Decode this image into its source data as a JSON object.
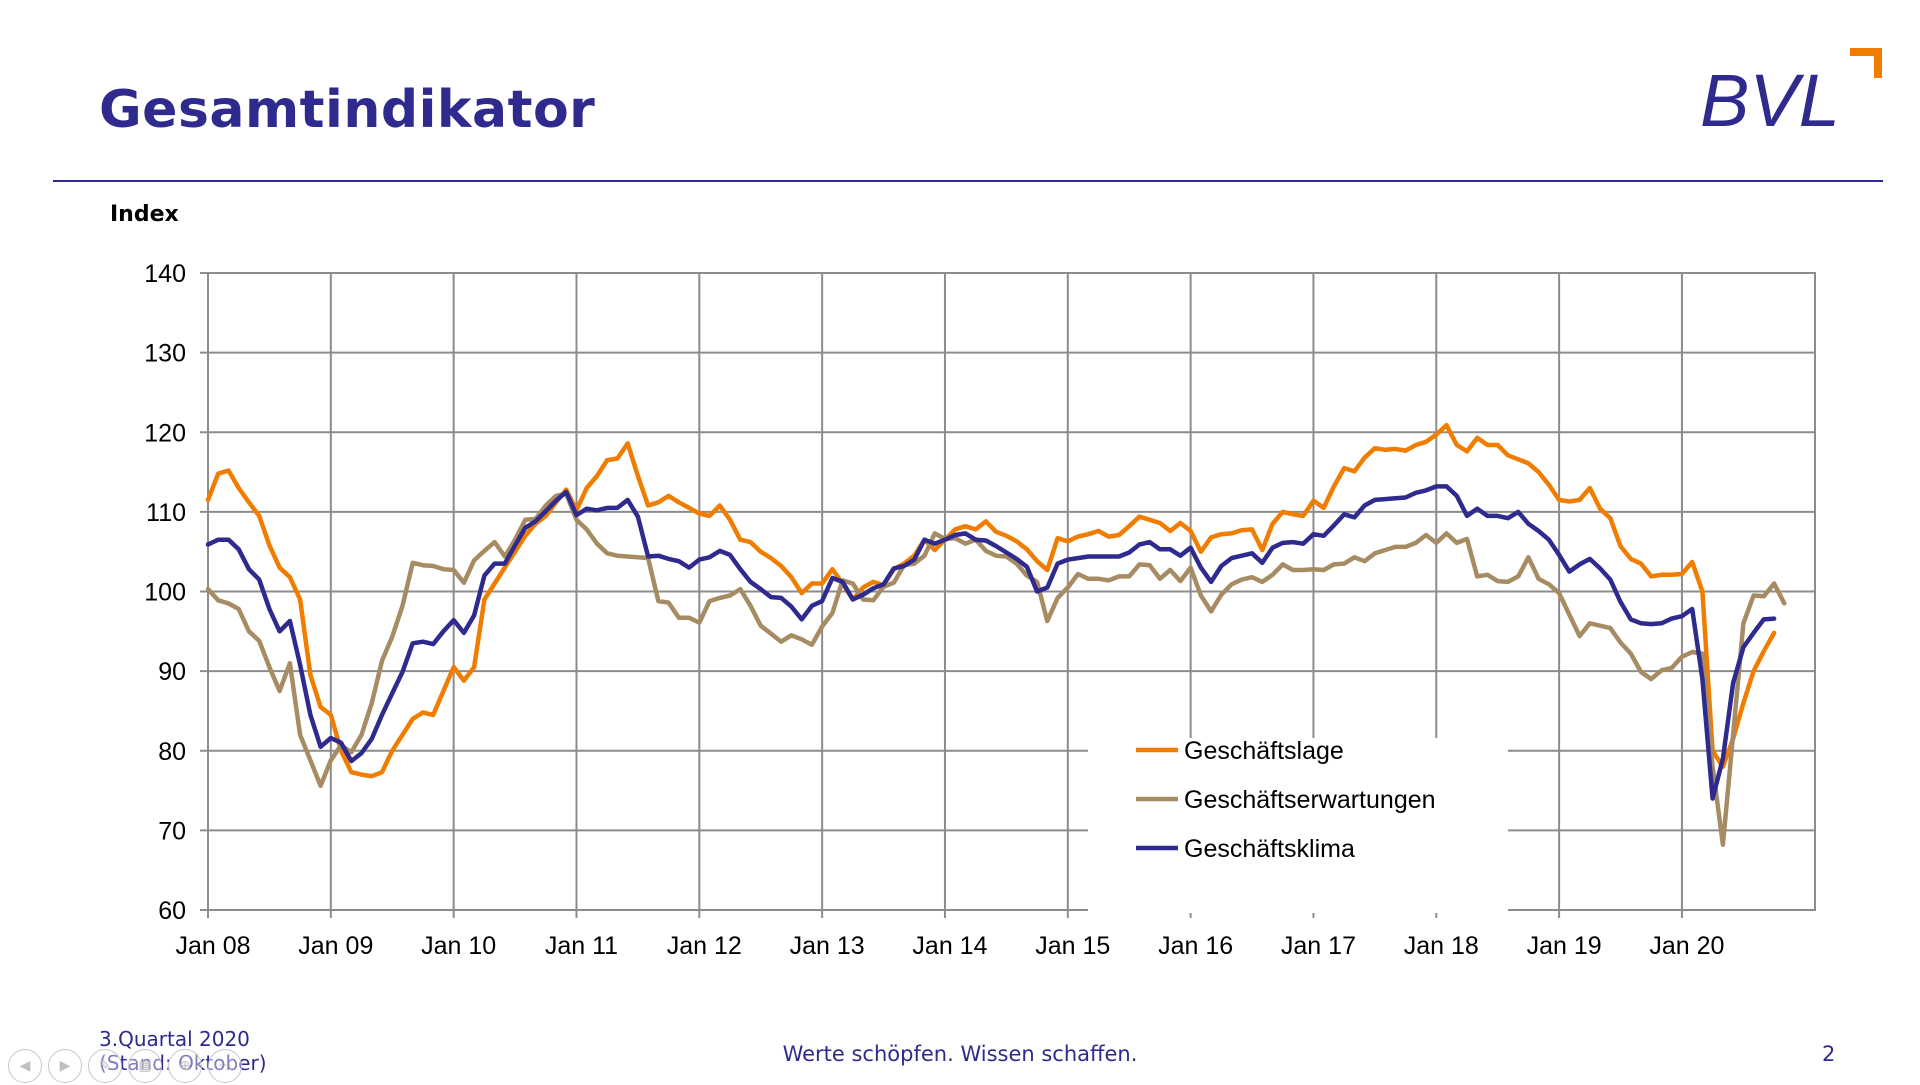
{
  "page": {
    "title": "Gesamtindikator",
    "footer_period": "3.Quartal 2020",
    "footer_status": "(Stand: Oktober)",
    "slogan": "Werte schöpfen. Wissen schaffen.",
    "page_number": "2"
  },
  "logo": {
    "text": "BVL",
    "text_color": "#2e2a8e",
    "accent_color": "#f07d00"
  },
  "nav_controls": {
    "icons": [
      "prev-icon",
      "next-icon",
      "pen-icon",
      "gallery-icon",
      "zoom-icon",
      "more-icon"
    ]
  },
  "chart_data": {
    "type": "line",
    "ylabel": "Index",
    "xlabel": "",
    "ylim": [
      60,
      140
    ],
    "yticks": [
      60,
      70,
      80,
      90,
      100,
      110,
      120,
      130,
      140
    ],
    "xtick_labels": [
      "Jan 08",
      "Jan 09",
      "Jan 10",
      "Jan 11",
      "Jan 12",
      "Jan 13",
      "Jan 14",
      "Jan 15",
      "Jan 16",
      "Jan 17",
      "Jan 18",
      "Jan 19",
      "Jan 20"
    ],
    "x_start": "Jan 08",
    "x_end": "Okt 20",
    "grid": true,
    "legend_position": "bottom-right",
    "series": [
      {
        "name": "Geschäftslage",
        "color": "#f07d00",
        "values": [
          111.5,
          114.8,
          115.2,
          113.0,
          111.2,
          109.5,
          105.8,
          103.0,
          101.8,
          99.0,
          89.5,
          85.5,
          84.5,
          80.0,
          77.3,
          77.0,
          76.8,
          77.3,
          80.0,
          82.0,
          84.0,
          84.8,
          84.5,
          87.5,
          90.5,
          88.8,
          90.5,
          99.0,
          101.0,
          103.0,
          105.0,
          107.0,
          108.5,
          109.5,
          111.2,
          112.8,
          110.2,
          113.0,
          114.5,
          116.5,
          116.7,
          118.6,
          114.5,
          110.8,
          111.2,
          112.0,
          111.2,
          110.5,
          109.8,
          109.5,
          110.8,
          109.0,
          106.5,
          106.2,
          105.0,
          104.2,
          103.2,
          101.8,
          99.8,
          101.0,
          101.0,
          102.8,
          101.0,
          99.0,
          100.5,
          101.2,
          100.8,
          102.8,
          103.5,
          104.5,
          106.5,
          105.2,
          106.5,
          107.8,
          108.2,
          107.8,
          108.8,
          107.5,
          107.0,
          106.3,
          105.3,
          103.8,
          102.7,
          106.7,
          106.3,
          106.9,
          107.2,
          107.6,
          106.9,
          107.1,
          108.2,
          109.4,
          109.0,
          108.6,
          107.6,
          108.6,
          107.6,
          105.0,
          106.8,
          107.2,
          107.3,
          107.7,
          107.8,
          105.2,
          108.5,
          110.0,
          109.7,
          109.5,
          111.4,
          110.5,
          113.2,
          115.5,
          115.1,
          116.8,
          118.0,
          117.8,
          117.9,
          117.7,
          118.4,
          118.8,
          119.7,
          120.9,
          118.4,
          117.6,
          119.3,
          118.4,
          118.4,
          117.1,
          116.6,
          116.1,
          115.0,
          113.4,
          111.5,
          111.3,
          111.5,
          113.0,
          110.4,
          109.2,
          105.7,
          104.1,
          103.5,
          101.9,
          102.1,
          102.1,
          102.2,
          103.7,
          100.0,
          80.0,
          78.0,
          81.5,
          86.0,
          90.0,
          92.5,
          94.8
        ]
      },
      {
        "name": "Geschäftserwartungen",
        "color": "#a68b63",
        "values": [
          100.3,
          98.9,
          98.5,
          97.8,
          95.0,
          93.8,
          90.5,
          87.5,
          91.0,
          82.0,
          78.8,
          75.6,
          78.8,
          80.7,
          79.8,
          82.0,
          86.0,
          91.3,
          94.3,
          98.2,
          103.6,
          103.3,
          103.2,
          102.8,
          102.7,
          101.1,
          103.9,
          105.1,
          106.2,
          104.4,
          106.5,
          109.0,
          109.1,
          110.8,
          112.0,
          112.3,
          109.0,
          107.8,
          106.0,
          104.8,
          104.5,
          104.4,
          104.3,
          104.2,
          98.8,
          98.6,
          96.7,
          96.7,
          96.1,
          98.8,
          99.2,
          99.5,
          100.3,
          98.2,
          95.7,
          94.7,
          93.7,
          94.5,
          94.0,
          93.3,
          95.6,
          97.3,
          101.4,
          101.0,
          99.0,
          98.9,
          100.6,
          101.1,
          103.3,
          103.5,
          104.5,
          107.3,
          106.6,
          106.7,
          106.0,
          106.5,
          105.1,
          104.5,
          104.4,
          103.5,
          102.0,
          101.2,
          96.3,
          99.2,
          100.5,
          102.2,
          101.6,
          101.6,
          101.4,
          101.9,
          101.9,
          103.4,
          103.3,
          101.6,
          102.7,
          101.3,
          103.0,
          99.5,
          97.5,
          99.6,
          100.9,
          101.5,
          101.8,
          101.2,
          102.1,
          103.4,
          102.7,
          102.7,
          102.8,
          102.7,
          103.4,
          103.5,
          104.3,
          103.8,
          104.8,
          105.2,
          105.6,
          105.6,
          106.1,
          107.1,
          106.1,
          107.3,
          106.1,
          106.6,
          101.9,
          102.1,
          101.3,
          101.2,
          101.9,
          104.3,
          101.6,
          100.9,
          99.8,
          97.1,
          94.4,
          96.0,
          95.7,
          95.4,
          93.6,
          92.2,
          89.9,
          89.0,
          90.1,
          90.4,
          91.8,
          92.4,
          92.2,
          78.0,
          68.2,
          82.0,
          96.0,
          99.5,
          99.4,
          101.0,
          98.5
        ]
      },
      {
        "name": "Geschäftsklima",
        "color": "#2e2a8e",
        "values": [
          105.9,
          106.5,
          106.5,
          105.3,
          102.8,
          101.5,
          97.8,
          95.0,
          96.3,
          90.8,
          84.5,
          80.5,
          81.6,
          81.0,
          78.7,
          79.7,
          81.5,
          84.5,
          87.2,
          89.9,
          93.5,
          93.7,
          93.4,
          95.0,
          96.4,
          94.8,
          97.0,
          102.0,
          103.5,
          103.5,
          105.8,
          108.0,
          108.8,
          110.1,
          111.4,
          112.5,
          109.6,
          110.4,
          110.2,
          110.5,
          110.5,
          111.5,
          109.4,
          104.4,
          104.5,
          104.1,
          103.8,
          103.0,
          104.0,
          104.3,
          105.1,
          104.6,
          102.8,
          101.2,
          100.3,
          99.3,
          99.2,
          98.1,
          96.5,
          98.2,
          98.8,
          101.7,
          101.2,
          99.0,
          99.6,
          100.4,
          100.9,
          102.9,
          103.2,
          104.0,
          106.5,
          106.0,
          106.5,
          107.1,
          107.3,
          106.5,
          106.4,
          105.7,
          104.9,
          104.1,
          103.1,
          100.0,
          100.5,
          103.5,
          104.0,
          104.2,
          104.4,
          104.4,
          104.4,
          104.4,
          104.9,
          105.9,
          106.2,
          105.3,
          105.3,
          104.5,
          105.5,
          103.0,
          101.2,
          103.2,
          104.2,
          104.5,
          104.8,
          103.6,
          105.5,
          106.1,
          106.2,
          106.0,
          107.2,
          107.0,
          108.3,
          109.7,
          109.3,
          110.8,
          111.5,
          111.6,
          111.7,
          111.8,
          112.4,
          112.7,
          113.2,
          113.2,
          112.0,
          109.5,
          110.4,
          109.5,
          109.5,
          109.2,
          110.0,
          108.5,
          107.6,
          106.5,
          104.6,
          102.5,
          103.4,
          104.1,
          102.9,
          101.5,
          98.7,
          96.5,
          96.0,
          95.9,
          96.0,
          96.6,
          96.9,
          97.8,
          89.0,
          74.0,
          79.0,
          88.5,
          93.0,
          94.8,
          96.5,
          96.6
        ]
      }
    ]
  }
}
